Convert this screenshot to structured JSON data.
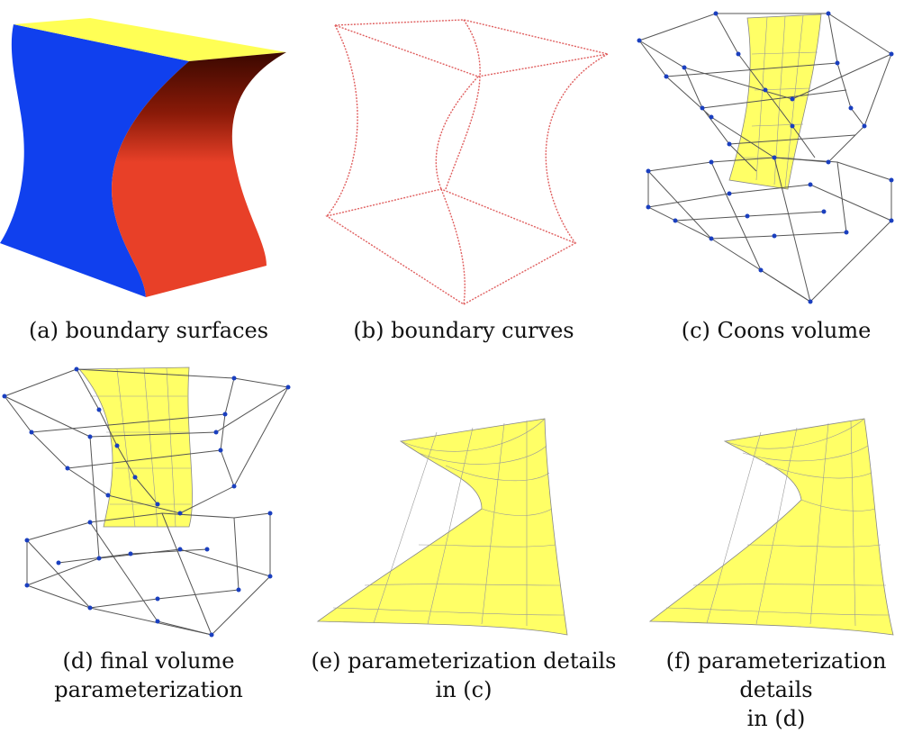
{
  "figure": {
    "panels": [
      {
        "id": "a",
        "caption": "(a) boundary surfaces",
        "colors": {
          "left": "#1040ee",
          "top": "#ffff55",
          "right": "#e84028"
        }
      },
      {
        "id": "b",
        "caption": "(b) boundary curves",
        "colors": {
          "curve": "#e06060"
        }
      },
      {
        "id": "c",
        "caption": "(c) Coons volume",
        "colors": {
          "mesh": "#ffff66",
          "lattice": "#555555",
          "control_point": "#1a3fbf"
        }
      },
      {
        "id": "d",
        "caption_line1": "(d) final volume",
        "caption_line2": "parameterization",
        "colors": {
          "mesh": "#ffff66",
          "lattice": "#555555",
          "control_point": "#1a3fbf"
        }
      },
      {
        "id": "e",
        "caption_line1": "(e) parameterization details",
        "caption_line2": "in (c)",
        "colors": {
          "surface": "#ffff66"
        }
      },
      {
        "id": "f",
        "caption_line1": "(f) parameterization details",
        "caption_line2": "in (d)",
        "colors": {
          "surface": "#ffff66"
        }
      }
    ]
  }
}
